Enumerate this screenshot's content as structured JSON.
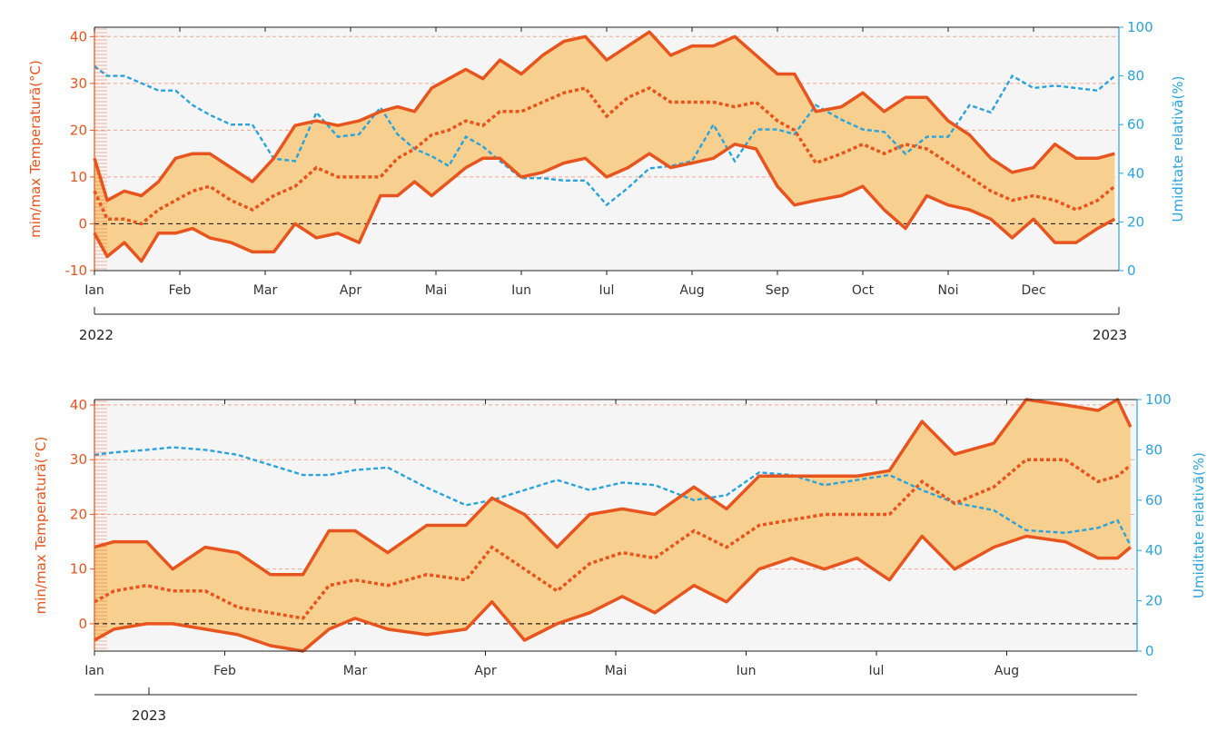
{
  "colors": {
    "temp_line": "#e8541e",
    "band_fill": "#f7cf8f",
    "humidity_line": "#2aa3dc",
    "plot_bg": "#f5f5f5",
    "grid_red": "#f2a58c",
    "zero_line": "#222222"
  },
  "chart_data": [
    {
      "type": "area",
      "left_axis_title": "min/max Temperatură(°C)",
      "right_axis_title": "Umiditate relativă(%)",
      "ylim_left": [
        -10,
        42
      ],
      "ylim_right": [
        0,
        100
      ],
      "yticks_left": [
        -10,
        0,
        10,
        20,
        30,
        40
      ],
      "yticks_right": [
        0,
        20,
        40,
        60,
        80,
        100
      ],
      "xlim": [
        0,
        12.0
      ],
      "months": [
        "Ian",
        "Feb",
        "Mar",
        "Apr",
        "Mai",
        "Iun",
        "Iul",
        "Aug",
        "Sep",
        "Oct",
        "Noi",
        "Dec"
      ],
      "year_start_label": "2022",
      "year_end_label": "2023",
      "grid": "horizontal",
      "x": [
        0,
        0.15,
        0.35,
        0.55,
        0.75,
        0.95,
        1.15,
        1.35,
        1.6,
        1.85,
        2.1,
        2.35,
        2.6,
        2.85,
        3.1,
        3.35,
        3.55,
        3.75,
        3.95,
        4.15,
        4.35,
        4.55,
        4.75,
        5.0,
        5.25,
        5.5,
        5.75,
        6.0,
        6.25,
        6.5,
        6.75,
        7.0,
        7.25,
        7.5,
        7.75,
        8.0,
        8.2,
        8.45,
        8.75,
        9.0,
        9.25,
        9.5,
        9.75,
        10.0,
        10.25,
        10.5,
        10.75,
        11.0,
        11.25,
        11.5,
        11.75,
        11.95
      ],
      "series": [
        {
          "name": "max",
          "values": [
            14,
            5,
            7,
            6,
            9,
            14,
            15,
            15,
            12,
            9,
            14,
            21,
            22,
            21,
            22,
            24,
            25,
            24,
            29,
            31,
            33,
            31,
            35,
            32,
            36,
            39,
            40,
            35,
            38,
            41,
            36,
            38,
            38,
            40,
            36,
            32,
            32,
            24,
            25,
            28,
            24,
            27,
            27,
            22,
            19,
            14,
            11,
            12,
            17,
            14,
            14,
            15
          ]
        },
        {
          "name": "mean",
          "values": [
            7,
            1,
            1,
            0,
            3,
            5,
            7,
            8,
            5,
            3,
            6,
            8,
            12,
            10,
            10,
            10,
            14,
            16,
            19,
            20,
            22,
            21,
            24,
            24,
            26,
            28,
            29,
            23,
            27,
            29,
            26,
            26,
            26,
            25,
            26,
            22,
            20,
            13,
            15,
            17,
            15,
            17,
            16,
            13,
            10,
            7,
            5,
            6,
            5,
            3,
            5,
            8
          ]
        },
        {
          "name": "min",
          "values": [
            -2,
            -7,
            -4,
            -8,
            -2,
            -2,
            -1,
            -3,
            -4,
            -6,
            -6,
            0,
            -3,
            -2,
            -4,
            6,
            6,
            9,
            6,
            9,
            12,
            14,
            14,
            10,
            11,
            13,
            14,
            10,
            12,
            15,
            12,
            13,
            14,
            17,
            16,
            8,
            4,
            5,
            6,
            8,
            3,
            -1,
            6,
            4,
            3,
            1,
            -3,
            1,
            -4,
            -4,
            -1,
            1
          ]
        },
        {
          "name": "humidity",
          "values": [
            84,
            80,
            80,
            77,
            74,
            74,
            68,
            64,
            60,
            60,
            46,
            45,
            65,
            55,
            56,
            67,
            56,
            50,
            47,
            43,
            55,
            51,
            45,
            38,
            38,
            37,
            37,
            27,
            34,
            42,
            43,
            45,
            60,
            45,
            58,
            58,
            56,
            68,
            62,
            58,
            57,
            48,
            55,
            55,
            68,
            65,
            80,
            75,
            76,
            75,
            74,
            80
          ]
        }
      ]
    },
    {
      "type": "area",
      "left_axis_title": "min/max Temperatură(°C)",
      "right_axis_title": "Umiditate relativă(%)",
      "ylim_left": [
        -5,
        41
      ],
      "ylim_right": [
        0,
        100
      ],
      "yticks_left": [
        0,
        10,
        20,
        30,
        40
      ],
      "yticks_right": [
        0,
        20,
        40,
        60,
        80,
        100
      ],
      "xlim": [
        0,
        8.0
      ],
      "months": [
        "Ian",
        "Feb",
        "Mar",
        "Apr",
        "Mai",
        "Iun",
        "Iul",
        "Aug"
      ],
      "year_start_label": "2023",
      "grid": "horizontal",
      "x": [
        0,
        0.15,
        0.4,
        0.6,
        0.85,
        1.1,
        1.35,
        1.6,
        1.8,
        2.0,
        2.25,
        2.55,
        2.85,
        3.05,
        3.3,
        3.55,
        3.8,
        4.05,
        4.3,
        4.6,
        4.85,
        5.1,
        5.35,
        5.6,
        5.85,
        6.1,
        6.35,
        6.6,
        6.9,
        7.15,
        7.45,
        7.7,
        7.85,
        7.95
      ],
      "series": [
        {
          "name": "max",
          "values": [
            14,
            15,
            15,
            10,
            14,
            13,
            9,
            9,
            17,
            17,
            13,
            18,
            18,
            23,
            20,
            14,
            20,
            21,
            20,
            25,
            21,
            27,
            27,
            27,
            27,
            28,
            37,
            31,
            33,
            41,
            40,
            39,
            41,
            36
          ]
        },
        {
          "name": "mean",
          "values": [
            4,
            6,
            7,
            6,
            6,
            3,
            2,
            1,
            7,
            8,
            7,
            9,
            8,
            14,
            10,
            6,
            11,
            13,
            12,
            17,
            14,
            18,
            19,
            20,
            20,
            20,
            26,
            22,
            25,
            30,
            30,
            26,
            27,
            29
          ]
        },
        {
          "name": "min",
          "values": [
            -3,
            -1,
            0,
            0,
            -1,
            -2,
            -4,
            -5,
            -1,
            1,
            -1,
            -2,
            -1,
            4,
            -3,
            0,
            2,
            5,
            2,
            7,
            4,
            10,
            12,
            10,
            12,
            8,
            16,
            10,
            14,
            16,
            15,
            12,
            12,
            14
          ]
        },
        {
          "name": "humidity",
          "values": [
            78,
            79,
            80,
            81,
            80,
            78,
            74,
            70,
            70,
            72,
            73,
            65,
            58,
            60,
            64,
            68,
            64,
            67,
            66,
            60,
            62,
            71,
            70,
            66,
            68,
            70,
            64,
            59,
            56,
            48,
            47,
            49,
            52,
            42
          ]
        }
      ]
    }
  ]
}
